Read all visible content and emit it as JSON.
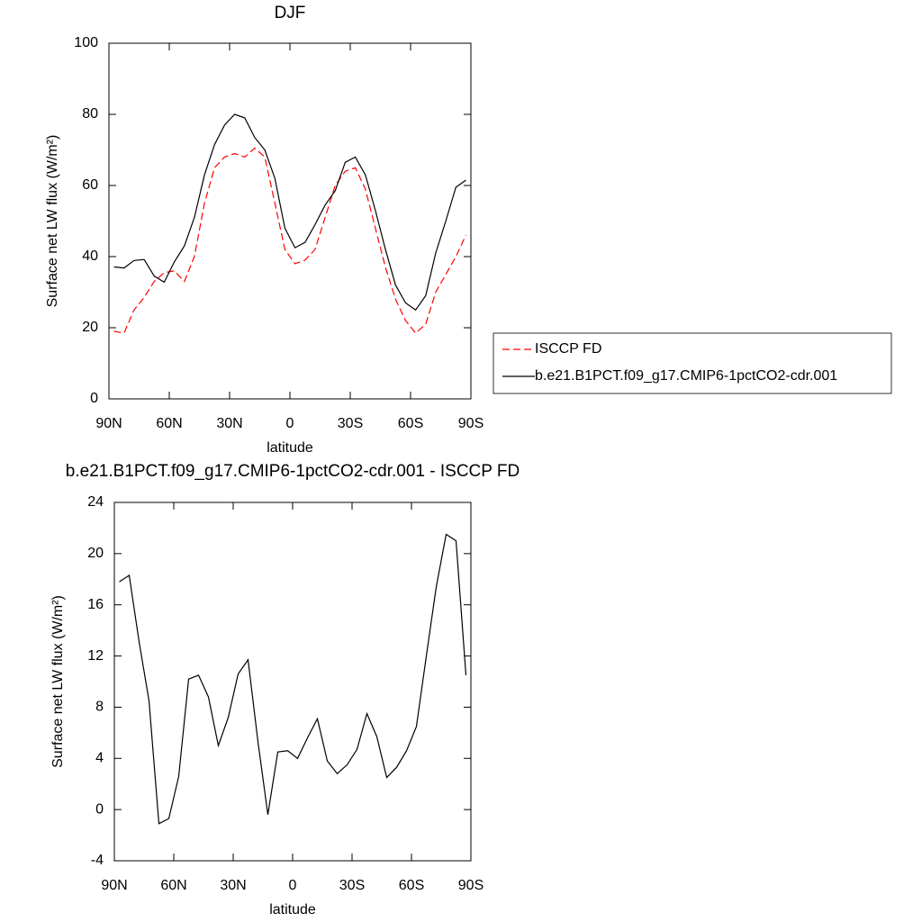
{
  "chart_data": [
    {
      "type": "line",
      "title": "DJF",
      "x_label": "latitude",
      "y_label": "Surface net LW flux (W/m²)",
      "x": [
        87.5,
        82.5,
        77.5,
        72.5,
        67.5,
        62.5,
        57.5,
        52.5,
        47.5,
        42.5,
        37.5,
        32.5,
        27.5,
        22.5,
        17.5,
        12.5,
        7.5,
        2.5,
        -2.5,
        -7.5,
        -12.5,
        -17.5,
        -22.5,
        -27.5,
        -32.5,
        -37.5,
        -42.5,
        -47.5,
        -52.5,
        -57.5,
        -62.5,
        -67.5,
        -72.5,
        -77.5,
        -82.5,
        -87.5
      ],
      "series": [
        {
          "name": "ISCCP FD",
          "color": "#ff0000",
          "line_style": "dashed",
          "values": [
            19,
            18.5,
            25,
            28.5,
            33,
            35.5,
            36,
            33,
            40,
            55,
            65,
            68,
            69,
            68,
            70.5,
            68,
            55,
            42,
            38,
            39,
            42,
            51,
            60,
            64,
            65,
            59,
            48,
            37,
            28,
            22,
            18.5,
            21,
            30,
            35,
            40,
            46
          ]
        },
        {
          "name": "b.e21.B1PCT.f09_g17.CMIP6-1pctCO2-cdr.001",
          "color": "#000000",
          "line_style": "solid",
          "values": [
            37.1,
            36.8,
            38.9,
            39.2,
            34.5,
            32.8,
            38.5,
            43,
            51,
            63,
            71.5,
            77,
            80,
            79,
            73.5,
            70,
            62,
            48,
            42.5,
            44,
            49,
            54.5,
            58.5,
            66.5,
            68,
            63,
            53,
            42,
            32,
            27,
            25,
            29,
            41,
            50,
            59.5,
            61.5
          ]
        }
      ],
      "xlim": [
        90,
        -90
      ],
      "xticks": [
        {
          "value": 90,
          "label": "90N"
        },
        {
          "value": 60,
          "label": "60N"
        },
        {
          "value": 30,
          "label": "30N"
        },
        0,
        {
          "value": -30,
          "label": "30S"
        },
        {
          "value": -60,
          "label": "60S"
        },
        {
          "value": -90,
          "label": "90S"
        }
      ],
      "ylim": [
        0,
        100
      ],
      "yticks": [
        0,
        20,
        40,
        60,
        80,
        100
      ],
      "legend": "right"
    },
    {
      "type": "line",
      "title": "b.e21.B1PCT.f09_g17.CMIP6-1pctCO2-cdr.001 - ISCCP FD",
      "x_label": "latitude",
      "y_label": "Surface net LW flux (W/m²)",
      "x": [
        87.5,
        82.5,
        77.5,
        72.5,
        67.5,
        62.5,
        57.5,
        52.5,
        47.5,
        42.5,
        37.5,
        32.5,
        27.5,
        22.5,
        17.5,
        12.5,
        7.5,
        2.5,
        -2.5,
        -7.5,
        -12.5,
        -17.5,
        -22.5,
        -27.5,
        -32.5,
        -37.5,
        -42.5,
        -47.5,
        -52.5,
        -57.5,
        -62.5,
        -67.5,
        -72.5,
        -77.5,
        -82.5,
        -87.5
      ],
      "series": [
        {
          "color": "#000000",
          "line_style": "solid",
          "values": [
            17.8,
            18.3,
            13.1,
            8.5,
            -1.1,
            -0.7,
            2.6,
            10.2,
            10.5,
            8.8,
            5,
            7.2,
            10.6,
            11.7,
            5.3,
            -0.4,
            4.5,
            4.6,
            4,
            5.6,
            7.1,
            3.8,
            2.8,
            3.5,
            4.7,
            7.5,
            5.7,
            2.5,
            3.3,
            4.6,
            6.5,
            12,
            17.4,
            21.5,
            21,
            10.5
          ]
        }
      ],
      "xlim": [
        90,
        -90
      ],
      "xticks": [
        {
          "value": 90,
          "label": "90N"
        },
        {
          "value": 60,
          "label": "60N"
        },
        {
          "value": 30,
          "label": "30N"
        },
        0,
        {
          "value": -30,
          "label": "30S"
        },
        {
          "value": -60,
          "label": "60S"
        },
        {
          "value": -90,
          "label": "90S"
        }
      ],
      "ylim": [
        -4,
        24
      ],
      "yticks": [
        -4,
        0,
        4,
        8,
        12,
        16,
        20,
        24
      ]
    }
  ]
}
